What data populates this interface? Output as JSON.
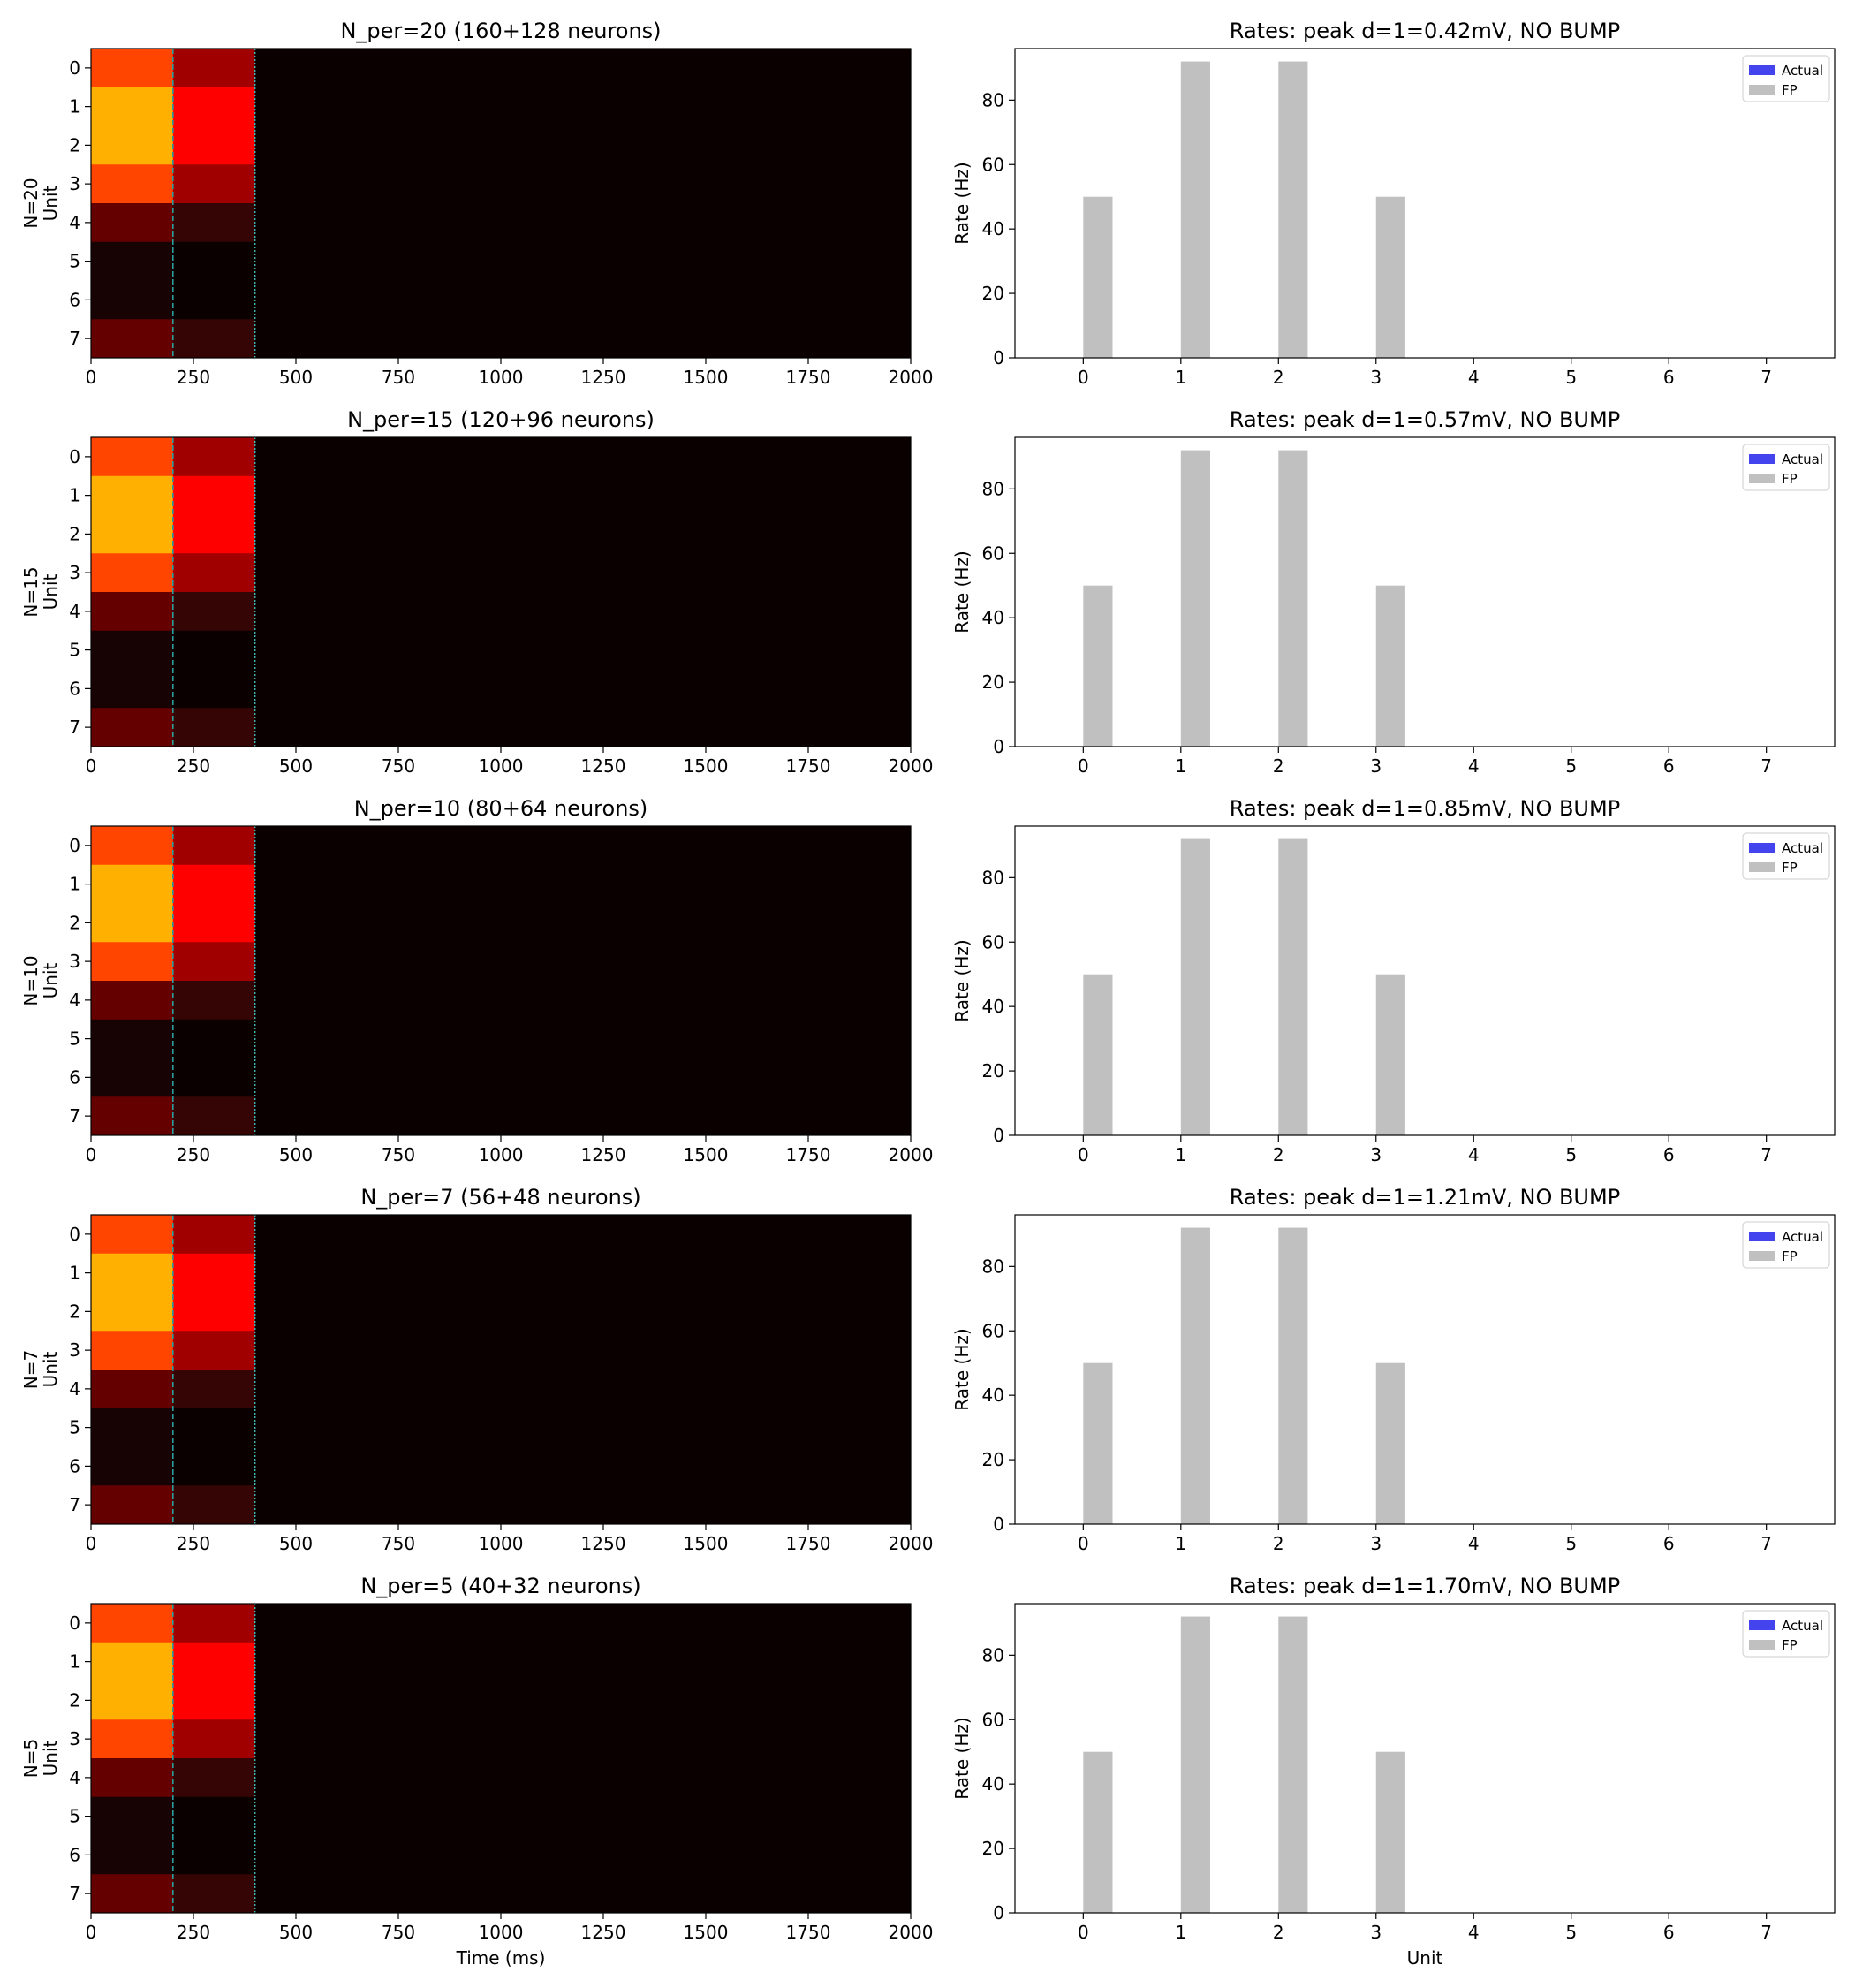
{
  "figure": {
    "heatmap_xlabel": "Time (ms)",
    "bar_xlabel": "Unit",
    "heatmap_ylabel": "Unit",
    "bar_ylabel": "Rate (Hz)"
  },
  "legend": {
    "actual": "Actual",
    "fp": "FP"
  },
  "colors": {
    "actual": "#4444ee",
    "fp": "#c0c0c0",
    "stim_line_1": "#2a9d9d",
    "stim_line_2": "#3fb8b8",
    "heat_scale": [
      "#0b0000",
      "#180304",
      "#350404",
      "#650000",
      "#a00000",
      "#ff0000",
      "#ff4500",
      "#ffb000"
    ]
  },
  "chart_data": [
    {
      "type": "heatmap",
      "title": "N_per=20 (160+128 neurons)",
      "row_label": "N=20",
      "ylabel": "Unit",
      "xlabel": "",
      "xlim": [
        0,
        2000
      ],
      "xticks": [
        0,
        250,
        500,
        750,
        1000,
        1250,
        1500,
        1750,
        2000
      ],
      "yticks": [
        0,
        1,
        2,
        3,
        4,
        5,
        6,
        7
      ],
      "time_bins": [
        [
          0,
          200
        ],
        [
          200,
          400
        ],
        [
          400,
          2000
        ]
      ],
      "levels": [
        [
          6,
          4,
          0
        ],
        [
          7,
          5,
          0
        ],
        [
          7,
          5,
          0
        ],
        [
          6,
          4,
          0
        ],
        [
          3,
          2,
          0
        ],
        [
          1,
          0,
          0
        ],
        [
          1,
          0,
          0
        ],
        [
          3,
          2,
          0
        ]
      ],
      "stim_lines": [
        200,
        400
      ]
    },
    {
      "type": "bar",
      "title": "Rates: peak d=1=0.42mV, NO BUMP",
      "ylabel": "Rate (Hz)",
      "xlabel": "",
      "categories": [
        0,
        1,
        2,
        3,
        4,
        5,
        6,
        7
      ],
      "ylim": [
        0,
        96
      ],
      "yticks": [
        0,
        20,
        40,
        60,
        80
      ],
      "series": [
        {
          "name": "Actual",
          "values": [
            0,
            0,
            0,
            0,
            0,
            0,
            0,
            0
          ]
        },
        {
          "name": "FP",
          "values": [
            50,
            92,
            92,
            50,
            0,
            0,
            0,
            0
          ]
        }
      ],
      "legend": "top-right"
    },
    {
      "type": "heatmap",
      "title": "N_per=15 (120+96 neurons)",
      "row_label": "N=15",
      "ylabel": "Unit",
      "xlabel": "",
      "xlim": [
        0,
        2000
      ],
      "xticks": [
        0,
        250,
        500,
        750,
        1000,
        1250,
        1500,
        1750,
        2000
      ],
      "yticks": [
        0,
        1,
        2,
        3,
        4,
        5,
        6,
        7
      ],
      "time_bins": [
        [
          0,
          200
        ],
        [
          200,
          400
        ],
        [
          400,
          2000
        ]
      ],
      "levels": [
        [
          6,
          4,
          0
        ],
        [
          7,
          5,
          0
        ],
        [
          7,
          5,
          0
        ],
        [
          6,
          4,
          0
        ],
        [
          3,
          2,
          0
        ],
        [
          1,
          0,
          0
        ],
        [
          1,
          0,
          0
        ],
        [
          3,
          2,
          0
        ]
      ],
      "stim_lines": [
        200,
        400
      ]
    },
    {
      "type": "bar",
      "title": "Rates: peak d=1=0.57mV, NO BUMP",
      "ylabel": "Rate (Hz)",
      "xlabel": "",
      "categories": [
        0,
        1,
        2,
        3,
        4,
        5,
        6,
        7
      ],
      "ylim": [
        0,
        96
      ],
      "yticks": [
        0,
        20,
        40,
        60,
        80
      ],
      "series": [
        {
          "name": "Actual",
          "values": [
            0,
            0,
            0,
            0,
            0,
            0,
            0,
            0
          ]
        },
        {
          "name": "FP",
          "values": [
            50,
            92,
            92,
            50,
            0,
            0,
            0,
            0
          ]
        }
      ],
      "legend": "top-right"
    },
    {
      "type": "heatmap",
      "title": "N_per=10 (80+64 neurons)",
      "row_label": "N=10",
      "ylabel": "Unit",
      "xlabel": "",
      "xlim": [
        0,
        2000
      ],
      "xticks": [
        0,
        250,
        500,
        750,
        1000,
        1250,
        1500,
        1750,
        2000
      ],
      "yticks": [
        0,
        1,
        2,
        3,
        4,
        5,
        6,
        7
      ],
      "time_bins": [
        [
          0,
          200
        ],
        [
          200,
          400
        ],
        [
          400,
          2000
        ]
      ],
      "levels": [
        [
          6,
          4,
          0
        ],
        [
          7,
          5,
          0
        ],
        [
          7,
          5,
          0
        ],
        [
          6,
          4,
          0
        ],
        [
          3,
          2,
          0
        ],
        [
          1,
          0,
          0
        ],
        [
          1,
          0,
          0
        ],
        [
          3,
          2,
          0
        ]
      ],
      "stim_lines": [
        200,
        400
      ]
    },
    {
      "type": "bar",
      "title": "Rates: peak d=1=0.85mV, NO BUMP",
      "ylabel": "Rate (Hz)",
      "xlabel": "",
      "categories": [
        0,
        1,
        2,
        3,
        4,
        5,
        6,
        7
      ],
      "ylim": [
        0,
        96
      ],
      "yticks": [
        0,
        20,
        40,
        60,
        80
      ],
      "series": [
        {
          "name": "Actual",
          "values": [
            0,
            0,
            0,
            0,
            0,
            0,
            0,
            0
          ]
        },
        {
          "name": "FP",
          "values": [
            50,
            92,
            92,
            50,
            0,
            0,
            0,
            0
          ]
        }
      ],
      "legend": "top-right"
    },
    {
      "type": "heatmap",
      "title": "N_per=7 (56+48 neurons)",
      "row_label": "N=7",
      "ylabel": "Unit",
      "xlabel": "",
      "xlim": [
        0,
        2000
      ],
      "xticks": [
        0,
        250,
        500,
        750,
        1000,
        1250,
        1500,
        1750,
        2000
      ],
      "yticks": [
        0,
        1,
        2,
        3,
        4,
        5,
        6,
        7
      ],
      "time_bins": [
        [
          0,
          200
        ],
        [
          200,
          400
        ],
        [
          400,
          2000
        ]
      ],
      "levels": [
        [
          6,
          4,
          0
        ],
        [
          7,
          5,
          0
        ],
        [
          7,
          5,
          0
        ],
        [
          6,
          4,
          0
        ],
        [
          3,
          2,
          0
        ],
        [
          1,
          0,
          0
        ],
        [
          1,
          0,
          0
        ],
        [
          3,
          2,
          0
        ]
      ],
      "stim_lines": [
        200,
        400
      ]
    },
    {
      "type": "bar",
      "title": "Rates: peak d=1=1.21mV, NO BUMP",
      "ylabel": "Rate (Hz)",
      "xlabel": "",
      "categories": [
        0,
        1,
        2,
        3,
        4,
        5,
        6,
        7
      ],
      "ylim": [
        0,
        96
      ],
      "yticks": [
        0,
        20,
        40,
        60,
        80
      ],
      "series": [
        {
          "name": "Actual",
          "values": [
            0,
            0,
            0,
            0,
            0,
            0,
            0,
            0
          ]
        },
        {
          "name": "FP",
          "values": [
            50,
            92,
            92,
            50,
            0,
            0,
            0,
            0
          ]
        }
      ],
      "legend": "top-right"
    },
    {
      "type": "heatmap",
      "title": "N_per=5 (40+32 neurons)",
      "row_label": "N=5",
      "ylabel": "Unit",
      "xlabel": "Time (ms)",
      "xlim": [
        0,
        2000
      ],
      "xticks": [
        0,
        250,
        500,
        750,
        1000,
        1250,
        1500,
        1750,
        2000
      ],
      "yticks": [
        0,
        1,
        2,
        3,
        4,
        5,
        6,
        7
      ],
      "time_bins": [
        [
          0,
          200
        ],
        [
          200,
          400
        ],
        [
          400,
          2000
        ]
      ],
      "levels": [
        [
          6,
          4,
          0
        ],
        [
          7,
          5,
          0
        ],
        [
          7,
          5,
          0
        ],
        [
          6,
          4,
          0
        ],
        [
          3,
          2,
          0
        ],
        [
          1,
          0,
          0
        ],
        [
          1,
          0,
          0
        ],
        [
          3,
          2,
          0
        ]
      ],
      "stim_lines": [
        200,
        400
      ]
    },
    {
      "type": "bar",
      "title": "Rates: peak d=1=1.70mV, NO BUMP",
      "ylabel": "Rate (Hz)",
      "xlabel": "Unit",
      "categories": [
        0,
        1,
        2,
        3,
        4,
        5,
        6,
        7
      ],
      "ylim": [
        0,
        96
      ],
      "yticks": [
        0,
        20,
        40,
        60,
        80
      ],
      "series": [
        {
          "name": "Actual",
          "values": [
            0,
            0,
            0,
            0,
            0,
            0,
            0,
            0
          ]
        },
        {
          "name": "FP",
          "values": [
            50,
            92,
            92,
            50,
            0,
            0,
            0,
            0
          ]
        }
      ],
      "legend": "top-right"
    }
  ]
}
